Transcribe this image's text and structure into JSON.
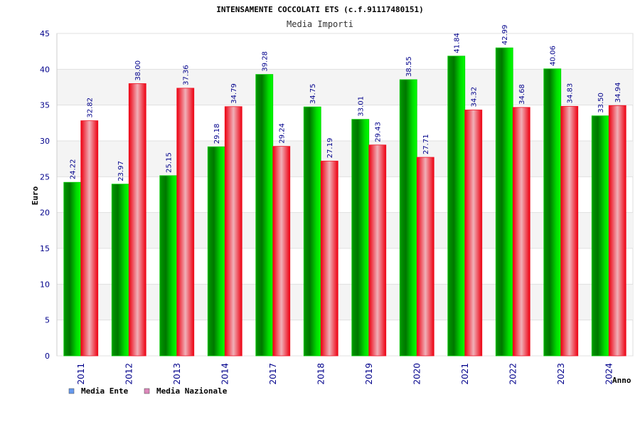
{
  "chart_data": {
    "type": "bar",
    "title": "INTENSAMENTE COCCOLATI ETS (c.f.91117480151)",
    "subtitle": "Media Importi",
    "xlabel": "Anno",
    "ylabel": "Euro",
    "ylim": [
      0,
      45
    ],
    "yticks": [
      "0",
      "5",
      "10",
      "15",
      "20",
      "25",
      "30",
      "35",
      "40",
      "45"
    ],
    "categories": [
      "2011",
      "2012",
      "2013",
      "2014",
      "2017",
      "2018",
      "2019",
      "2020",
      "2021",
      "2022",
      "2023",
      "2024"
    ],
    "series": [
      {
        "name": "Media Ente",
        "color": "#00cc00",
        "legend_color": "#6699ee",
        "values": [
          24.22,
          23.97,
          25.15,
          29.18,
          39.28,
          34.75,
          33.01,
          38.55,
          41.84,
          42.99,
          40.06,
          33.5
        ],
        "labels": [
          "24.22",
          "23.97",
          "25.15",
          "29.18",
          "39.28",
          "34.75",
          "33.01",
          "38.55",
          "41.84",
          "42.99",
          "40.06",
          "33.50"
        ]
      },
      {
        "name": "Media Nazionale",
        "color": "#ee1122",
        "legend_color": "#dd88bb",
        "values": [
          32.82,
          38.0,
          37.36,
          34.79,
          29.24,
          27.19,
          29.43,
          27.71,
          34.32,
          34.68,
          34.83,
          34.94
        ],
        "labels": [
          "32.82",
          "38.00",
          "37.36",
          "34.79",
          "29.24",
          "27.19",
          "29.43",
          "27.71",
          "34.32",
          "34.68",
          "34.83",
          "34.94"
        ]
      }
    ],
    "grid": true,
    "legend": "bottom-left"
  }
}
